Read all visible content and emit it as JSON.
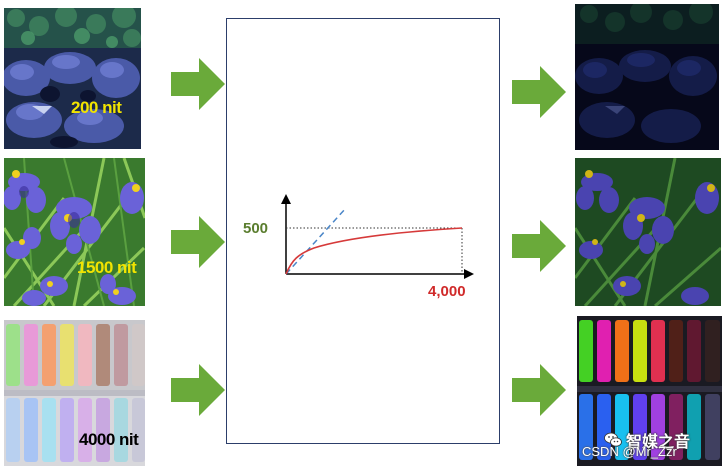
{
  "inputs": [
    {
      "label": "200 nit",
      "label_color": "#f2e400"
    },
    {
      "label": "1500 nit",
      "label_color": "#f2e400"
    },
    {
      "label": "4000 nit",
      "label_color": "#000000"
    }
  ],
  "curve": {
    "y_label": "500",
    "y_label_color": "#5a7d2e",
    "x_label": "4,000",
    "x_label_color": "#d02a2a"
  },
  "colors": {
    "arrow": "#6aaa3a",
    "curve": "#d63a3a",
    "dashed_line": "#4a86c8",
    "panel_border": "#2c3e6a"
  },
  "watermark": {
    "brand": "智媒之音",
    "text": "CSDN @Mr_Zzr"
  }
}
